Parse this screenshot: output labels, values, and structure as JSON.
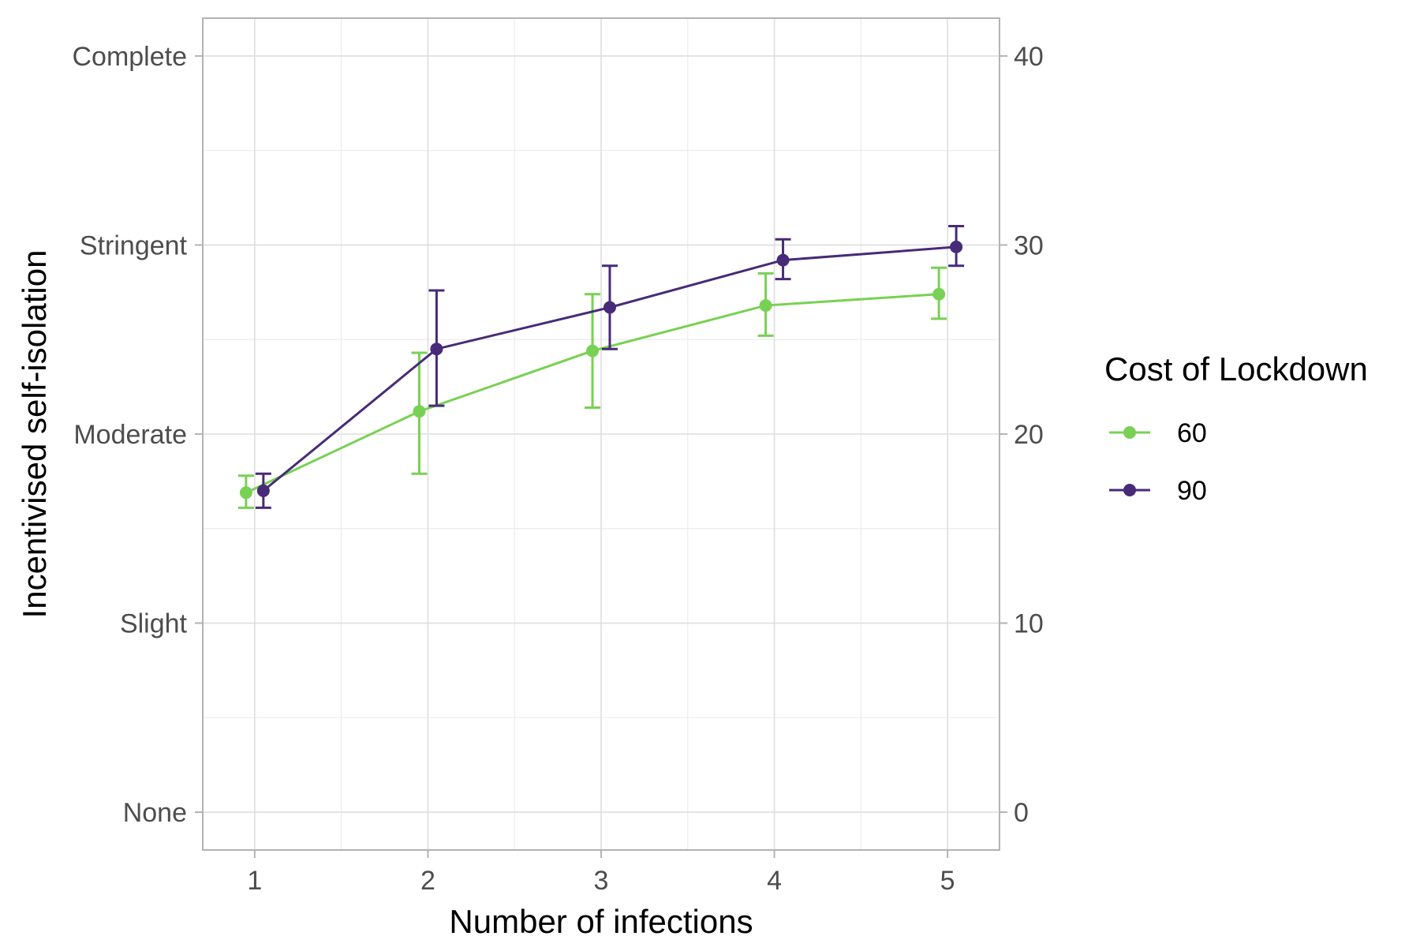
{
  "chart_data": {
    "type": "line",
    "xlabel": "Number of infections",
    "ylabel": "Incentivised self-isolation",
    "x": [
      1,
      2,
      3,
      4,
      5
    ],
    "xticks": [
      "1",
      "2",
      "3",
      "4",
      "5"
    ],
    "xlim": [
      0.7,
      5.3
    ],
    "ylim": [
      -2,
      42
    ],
    "yticks_left": [
      {
        "value": 0,
        "label": "None"
      },
      {
        "value": 10,
        "label": "Slight"
      },
      {
        "value": 20,
        "label": "Moderate"
      },
      {
        "value": 30,
        "label": "Stringent"
      },
      {
        "value": 40,
        "label": "Complete"
      }
    ],
    "yticks_right": [
      {
        "value": 0,
        "label": "0"
      },
      {
        "value": 10,
        "label": "10"
      },
      {
        "value": 20,
        "label": "20"
      },
      {
        "value": 30,
        "label": "30"
      },
      {
        "value": 40,
        "label": "40"
      }
    ],
    "grid": true,
    "legend": {
      "title": "Cost of Lockdown",
      "position": "right"
    },
    "series": [
      {
        "name": "60",
        "color": "#78d154",
        "y": [
          16.9,
          21.2,
          24.4,
          26.8,
          27.4
        ],
        "lower": [
          16.1,
          17.9,
          21.4,
          25.2,
          26.1
        ],
        "upper": [
          17.8,
          24.3,
          27.4,
          28.5,
          28.8
        ]
      },
      {
        "name": "90",
        "color": "#472b78",
        "y": [
          17.0,
          24.5,
          26.7,
          29.2,
          29.9
        ],
        "lower": [
          16.1,
          21.5,
          24.5,
          28.2,
          28.9
        ],
        "upper": [
          17.9,
          27.6,
          28.9,
          30.3,
          31.0
        ]
      }
    ]
  }
}
